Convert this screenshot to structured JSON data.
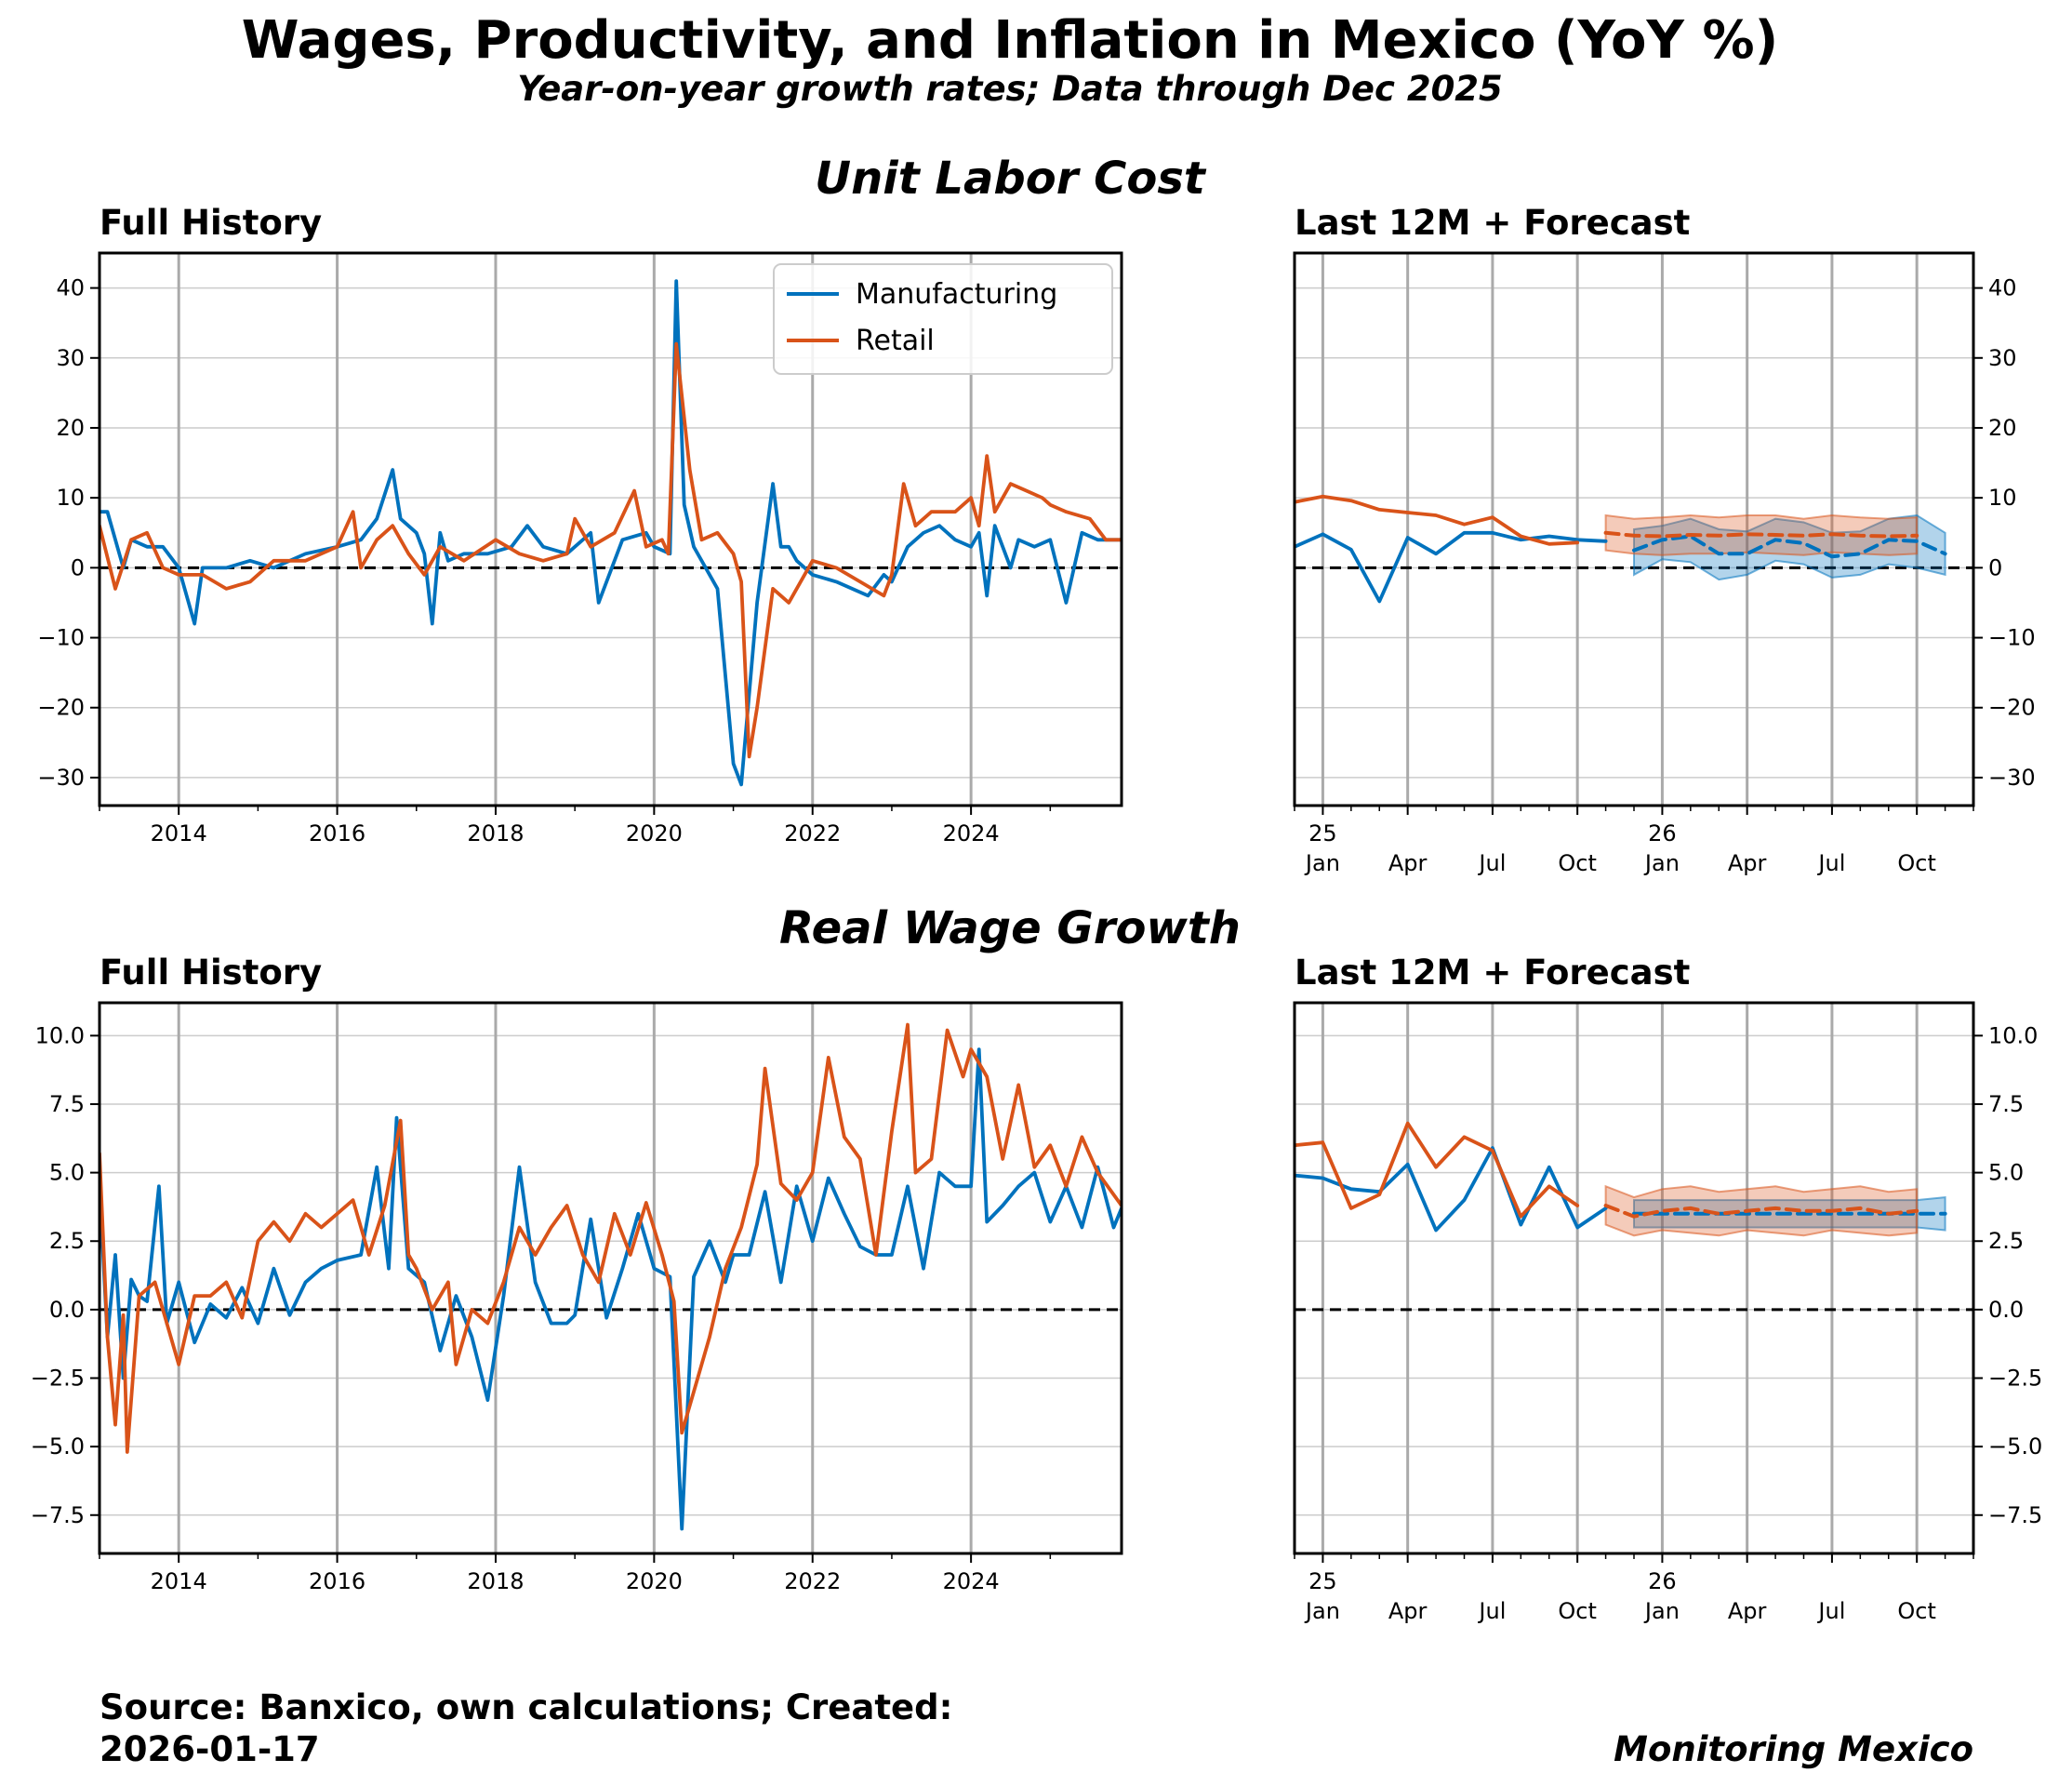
{
  "title": "Wages, Productivity, and Inflation in Mexico (YoY %)",
  "subtitle": "Year-on-year growth rates; Data through Dec 2025",
  "footer": {
    "source": "Source: Banxico, own calculations; Created:",
    "date": "2026-01-17",
    "brand": "Monitoring Mexico"
  },
  "colors": {
    "manufacturing": "#0072bd",
    "retail": "#d95319",
    "zero_line": "#000000",
    "grid": "#cccccc",
    "year_line": "#aaaaaa"
  },
  "chart_data": [
    {
      "type": "line",
      "section_title": "Unit Labor Cost",
      "title": "Full History",
      "legend": "top-right",
      "ylim": [
        -34,
        45
      ],
      "yticks": [
        -30,
        -20,
        -10,
        0,
        10,
        20,
        30,
        40
      ],
      "xlim": [
        2013.0,
        2025.9
      ],
      "xticks": [
        2014,
        2016,
        2018,
        2020,
        2022,
        2024
      ],
      "zero_line": true,
      "series": [
        {
          "name": "Manufacturing",
          "x": [
            2013.0,
            2013.1,
            2013.3,
            2013.4,
            2013.6,
            2013.8,
            2014.0,
            2014.2,
            2014.3,
            2014.6,
            2014.9,
            2015.2,
            2015.6,
            2016.0,
            2016.3,
            2016.5,
            2016.7,
            2016.8,
            2017.0,
            2017.1,
            2017.2,
            2017.3,
            2017.4,
            2017.6,
            2017.9,
            2018.2,
            2018.4,
            2018.6,
            2018.9,
            2019.2,
            2019.3,
            2019.6,
            2019.9,
            2020.0,
            2020.2,
            2020.28,
            2020.38,
            2020.5,
            2020.6,
            2020.8,
            2021.0,
            2021.1,
            2021.2,
            2021.3,
            2021.5,
            2021.6,
            2021.7,
            2021.8,
            2022.0,
            2022.3,
            2022.5,
            2022.7,
            2022.9,
            2023.0,
            2023.2,
            2023.4,
            2023.6,
            2023.8,
            2024.0,
            2024.1,
            2024.2,
            2024.3,
            2024.5,
            2024.6,
            2024.8,
            2025.0,
            2025.2,
            2025.4,
            2025.6,
            2025.9
          ],
          "values": [
            8,
            8,
            0,
            4,
            3,
            3,
            0,
            -8,
            0,
            0,
            1,
            0,
            2,
            3,
            4,
            7,
            14,
            7,
            5,
            2,
            -8,
            5,
            1,
            2,
            2,
            3,
            6,
            3,
            2,
            5,
            -5,
            4,
            5,
            3,
            2,
            41,
            9,
            3,
            1,
            -3,
            -28,
            -31,
            -18,
            -5,
            12,
            3,
            3,
            1,
            -1,
            -2,
            -3,
            -4,
            -1,
            -2,
            3,
            5,
            6,
            4,
            3,
            5,
            -4,
            6,
            0,
            4,
            3,
            4,
            -5,
            5,
            4,
            4
          ]
        },
        {
          "name": "Retail",
          "x": [
            2013.0,
            2013.2,
            2013.4,
            2013.6,
            2013.8,
            2014.0,
            2014.3,
            2014.6,
            2014.9,
            2015.2,
            2015.6,
            2016.0,
            2016.2,
            2016.3,
            2016.5,
            2016.7,
            2016.9,
            2017.1,
            2017.3,
            2017.6,
            2018.0,
            2018.3,
            2018.6,
            2018.9,
            2019.0,
            2019.2,
            2019.5,
            2019.75,
            2019.9,
            2020.1,
            2020.18,
            2020.28,
            2020.45,
            2020.6,
            2020.8,
            2021.0,
            2021.1,
            2021.2,
            2021.3,
            2021.5,
            2021.7,
            2022.0,
            2022.3,
            2022.6,
            2022.9,
            2023.0,
            2023.15,
            2023.3,
            2023.5,
            2023.8,
            2024.0,
            2024.1,
            2024.2,
            2024.3,
            2024.5,
            2024.7,
            2024.9,
            2025.0,
            2025.2,
            2025.5,
            2025.7,
            2025.9
          ],
          "values": [
            6,
            -3,
            4,
            5,
            0,
            -1,
            -1,
            -3,
            -2,
            1,
            1,
            3,
            8,
            0,
            4,
            6,
            2,
            -1,
            3,
            1,
            4,
            2,
            1,
            2,
            7,
            3,
            5,
            11,
            3,
            4,
            2,
            32,
            14,
            4,
            5,
            2,
            -2,
            -27,
            -20,
            -3,
            -5,
            1,
            0,
            -2,
            -4,
            -1,
            12,
            6,
            8,
            8,
            10,
            6,
            16,
            8,
            12,
            11,
            10,
            9,
            8,
            7,
            4,
            4
          ]
        }
      ]
    },
    {
      "type": "line",
      "section_title": "Unit Labor Cost",
      "title": "Last 12M + Forecast",
      "ylim": [
        -34,
        45
      ],
      "yticks": [
        -30,
        -20,
        -10,
        0,
        10,
        20,
        30,
        40
      ],
      "xlim": [
        "2024-12",
        "2026-12"
      ],
      "xtick_labels": [
        "25\nJan",
        "Apr",
        "Jul",
        "Oct",
        "26\nJan",
        "Apr",
        "Jul",
        "Oct"
      ],
      "zero_line": true,
      "series": [
        {
          "name": "Manufacturing",
          "x": [
            "2024-12",
            "2025-01",
            "2025-02",
            "2025-03",
            "2025-04",
            "2025-05",
            "2025-06",
            "2025-07",
            "2025-08",
            "2025-09",
            "2025-10",
            "2025-11"
          ],
          "values": [
            3.0,
            4.8,
            2.6,
            -4.8,
            4.3,
            2.0,
            5.0,
            5.0,
            4.0,
            4.5,
            4.0,
            3.8
          ]
        },
        {
          "name": "Retail",
          "x": [
            "2024-12",
            "2025-01",
            "2025-02",
            "2025-03",
            "2025-04",
            "2025-05",
            "2025-06",
            "2025-07",
            "2025-08",
            "2025-09",
            "2025-10"
          ],
          "values": [
            9.4,
            10.2,
            9.6,
            8.3,
            7.9,
            7.5,
            6.2,
            7.2,
            4.5,
            3.4,
            3.6
          ]
        },
        {
          "name": "Manufacturing forecast",
          "x": [
            "2025-12",
            "2026-01",
            "2026-02",
            "2026-03",
            "2026-04",
            "2026-05",
            "2026-06",
            "2026-07",
            "2026-08",
            "2026-09",
            "2026-10",
            "2026-11"
          ],
          "values": [
            2.5,
            4.0,
            4.5,
            2.0,
            2.0,
            4.0,
            3.5,
            1.6,
            2.0,
            4.0,
            3.8,
            2.0
          ],
          "lower": [
            -1.0,
            1.2,
            0.8,
            -1.7,
            -1.0,
            1.0,
            0.5,
            -1.4,
            -1.0,
            0.5,
            0.0,
            -1.0
          ],
          "upper": [
            5.5,
            6.0,
            7.0,
            5.5,
            5.2,
            7.0,
            6.5,
            5.0,
            5.2,
            7.0,
            7.5,
            5.0
          ]
        },
        {
          "name": "Retail forecast",
          "x": [
            "2025-11",
            "2025-12",
            "2026-01",
            "2026-02",
            "2026-03",
            "2026-04",
            "2026-05",
            "2026-06",
            "2026-07",
            "2026-08",
            "2026-09",
            "2026-10"
          ],
          "values": [
            5.0,
            4.6,
            4.5,
            4.7,
            4.6,
            4.8,
            4.7,
            4.6,
            4.8,
            4.6,
            4.5,
            4.6
          ],
          "lower": [
            2.5,
            2.0,
            1.8,
            2.0,
            2.0,
            2.2,
            2.0,
            1.8,
            2.2,
            2.0,
            1.8,
            2.0
          ],
          "upper": [
            7.5,
            7.0,
            7.2,
            7.5,
            7.2,
            7.5,
            7.5,
            7.0,
            7.5,
            7.2,
            7.0,
            7.2
          ]
        }
      ]
    },
    {
      "type": "line",
      "section_title": "Real Wage Growth",
      "title": "Full History",
      "ylim": [
        -8.9,
        11.2
      ],
      "yticks": [
        -7.5,
        -5.0,
        -2.5,
        0.0,
        2.5,
        5.0,
        7.5,
        10.0
      ],
      "xlim": [
        2013.0,
        2025.9
      ],
      "xticks": [
        2014,
        2016,
        2018,
        2020,
        2022,
        2024
      ],
      "zero_line": true,
      "series": [
        {
          "name": "Manufacturing",
          "x": [
            2013.0,
            2013.1,
            2013.2,
            2013.3,
            2013.4,
            2013.5,
            2013.6,
            2013.75,
            2013.85,
            2014.0,
            2014.2,
            2014.4,
            2014.6,
            2014.8,
            2015.0,
            2015.2,
            2015.4,
            2015.6,
            2015.8,
            2016.0,
            2016.3,
            2016.5,
            2016.65,
            2016.75,
            2016.9,
            2017.1,
            2017.3,
            2017.5,
            2017.7,
            2017.9,
            2018.1,
            2018.3,
            2018.5,
            2018.7,
            2018.9,
            2019.0,
            2019.2,
            2019.4,
            2019.6,
            2019.8,
            2020.0,
            2020.2,
            2020.35,
            2020.5,
            2020.7,
            2020.9,
            2021.0,
            2021.2,
            2021.4,
            2021.6,
            2021.8,
            2022.0,
            2022.2,
            2022.4,
            2022.6,
            2022.8,
            2023.0,
            2023.2,
            2023.4,
            2023.6,
            2023.8,
            2024.0,
            2024.1,
            2024.2,
            2024.4,
            2024.6,
            2024.8,
            2025.0,
            2025.2,
            2025.4,
            2025.6,
            2025.8,
            2025.9
          ],
          "values": [
            4.5,
            -1.0,
            2.0,
            -2.5,
            1.1,
            0.5,
            0.3,
            4.5,
            -0.5,
            1.0,
            -1.2,
            0.2,
            -0.3,
            0.8,
            -0.5,
            1.5,
            -0.2,
            1.0,
            1.5,
            1.8,
            2.0,
            5.2,
            1.5,
            7.0,
            1.5,
            1.0,
            -1.5,
            0.5,
            -1.0,
            -3.3,
            0.5,
            5.2,
            1.0,
            -0.5,
            -0.5,
            -0.2,
            3.3,
            -0.3,
            1.5,
            3.5,
            1.5,
            1.2,
            -8.0,
            1.2,
            2.5,
            1.0,
            2.0,
            2.0,
            4.3,
            1.0,
            4.5,
            2.5,
            4.8,
            3.5,
            2.3,
            2.0,
            2.0,
            4.5,
            1.5,
            5.0,
            4.5,
            4.5,
            9.5,
            3.2,
            3.8,
            4.5,
            5.0,
            3.2,
            4.5,
            3.0,
            5.2,
            3.0,
            3.7
          ]
        },
        {
          "name": "Retail",
          "x": [
            2013.0,
            2013.1,
            2013.2,
            2013.3,
            2013.35,
            2013.5,
            2013.7,
            2013.85,
            2014.0,
            2014.2,
            2014.4,
            2014.6,
            2014.8,
            2015.0,
            2015.2,
            2015.4,
            2015.6,
            2015.8,
            2016.0,
            2016.2,
            2016.4,
            2016.6,
            2016.8,
            2016.9,
            2017.0,
            2017.2,
            2017.4,
            2017.5,
            2017.7,
            2017.9,
            2018.1,
            2018.3,
            2018.5,
            2018.7,
            2018.9,
            2019.1,
            2019.3,
            2019.5,
            2019.7,
            2019.9,
            2020.1,
            2020.25,
            2020.35,
            2020.5,
            2020.7,
            2020.9,
            2021.1,
            2021.3,
            2021.4,
            2021.6,
            2021.8,
            2022.0,
            2022.2,
            2022.4,
            2022.6,
            2022.8,
            2023.0,
            2023.2,
            2023.3,
            2023.5,
            2023.7,
            2023.9,
            2024.0,
            2024.2,
            2024.4,
            2024.6,
            2024.8,
            2025.0,
            2025.2,
            2025.4,
            2025.6,
            2025.8,
            2025.9
          ],
          "values": [
            5.7,
            -1.0,
            -4.2,
            -0.2,
            -5.2,
            0.5,
            1.0,
            -0.5,
            -2.0,
            0.5,
            0.5,
            1.0,
            -0.3,
            2.5,
            3.2,
            2.5,
            3.5,
            3.0,
            3.5,
            4.0,
            2.0,
            3.8,
            6.9,
            2.0,
            1.5,
            0.0,
            1.0,
            -2.0,
            0.0,
            -0.5,
            1.0,
            3.0,
            2.0,
            3.0,
            3.8,
            2.0,
            1.0,
            3.5,
            2.0,
            3.9,
            2.0,
            0.3,
            -4.5,
            -3.0,
            -1.0,
            1.5,
            3.0,
            5.3,
            8.8,
            4.6,
            4.0,
            5.0,
            9.2,
            6.3,
            5.5,
            2.0,
            6.5,
            10.4,
            5.0,
            5.5,
            10.2,
            8.5,
            9.5,
            8.5,
            5.5,
            8.2,
            5.2,
            6.0,
            4.5,
            6.3,
            5.0,
            4.2,
            3.8
          ]
        }
      ]
    },
    {
      "type": "line",
      "section_title": "Real Wage Growth",
      "title": "Last 12M + Forecast",
      "ylim": [
        -8.9,
        11.2
      ],
      "yticks": [
        -7.5,
        -5.0,
        -2.5,
        0.0,
        2.5,
        5.0,
        7.5,
        10.0
      ],
      "xlim": [
        "2024-12",
        "2026-12"
      ],
      "xtick_labels": [
        "25\nJan",
        "Apr",
        "Jul",
        "Oct",
        "26\nJan",
        "Apr",
        "Jul",
        "Oct"
      ],
      "zero_line": true,
      "series": [
        {
          "name": "Manufacturing",
          "x": [
            "2024-12",
            "2025-01",
            "2025-02",
            "2025-03",
            "2025-04",
            "2025-05",
            "2025-06",
            "2025-07",
            "2025-08",
            "2025-09",
            "2025-10",
            "2025-11"
          ],
          "values": [
            4.9,
            4.8,
            4.4,
            4.3,
            5.3,
            2.9,
            4.0,
            5.9,
            3.1,
            5.2,
            3.0,
            3.7
          ]
        },
        {
          "name": "Retail",
          "x": [
            "2024-12",
            "2025-01",
            "2025-02",
            "2025-03",
            "2025-04",
            "2025-05",
            "2025-06",
            "2025-07",
            "2025-08",
            "2025-09",
            "2025-10"
          ],
          "values": [
            6.0,
            6.1,
            3.7,
            4.2,
            6.8,
            5.2,
            6.3,
            5.8,
            3.4,
            4.5,
            3.8
          ]
        },
        {
          "name": "Manufacturing forecast",
          "x": [
            "2025-12",
            "2026-01",
            "2026-02",
            "2026-03",
            "2026-04",
            "2026-05",
            "2026-06",
            "2026-07",
            "2026-08",
            "2026-09",
            "2026-10",
            "2026-11"
          ],
          "values": [
            3.5,
            3.5,
            3.5,
            3.5,
            3.5,
            3.5,
            3.5,
            3.5,
            3.5,
            3.5,
            3.5,
            3.5
          ],
          "lower": [
            3.0,
            3.0,
            3.0,
            3.0,
            3.0,
            3.0,
            3.0,
            3.0,
            3.0,
            3.0,
            3.0,
            2.9
          ],
          "upper": [
            4.0,
            4.0,
            4.0,
            4.0,
            4.0,
            4.0,
            4.0,
            4.0,
            4.0,
            4.0,
            4.0,
            4.1
          ]
        },
        {
          "name": "Retail forecast",
          "x": [
            "2025-11",
            "2025-12",
            "2026-01",
            "2026-02",
            "2026-03",
            "2026-04",
            "2026-05",
            "2026-06",
            "2026-07",
            "2026-08",
            "2026-09",
            "2026-10"
          ],
          "values": [
            3.8,
            3.4,
            3.6,
            3.7,
            3.5,
            3.6,
            3.7,
            3.6,
            3.6,
            3.7,
            3.5,
            3.6
          ],
          "lower": [
            3.1,
            2.7,
            2.9,
            2.8,
            2.7,
            2.9,
            2.8,
            2.7,
            2.9,
            2.8,
            2.7,
            2.8
          ],
          "upper": [
            4.5,
            4.1,
            4.4,
            4.5,
            4.3,
            4.4,
            4.5,
            4.3,
            4.4,
            4.5,
            4.3,
            4.4
          ]
        }
      ]
    }
  ]
}
